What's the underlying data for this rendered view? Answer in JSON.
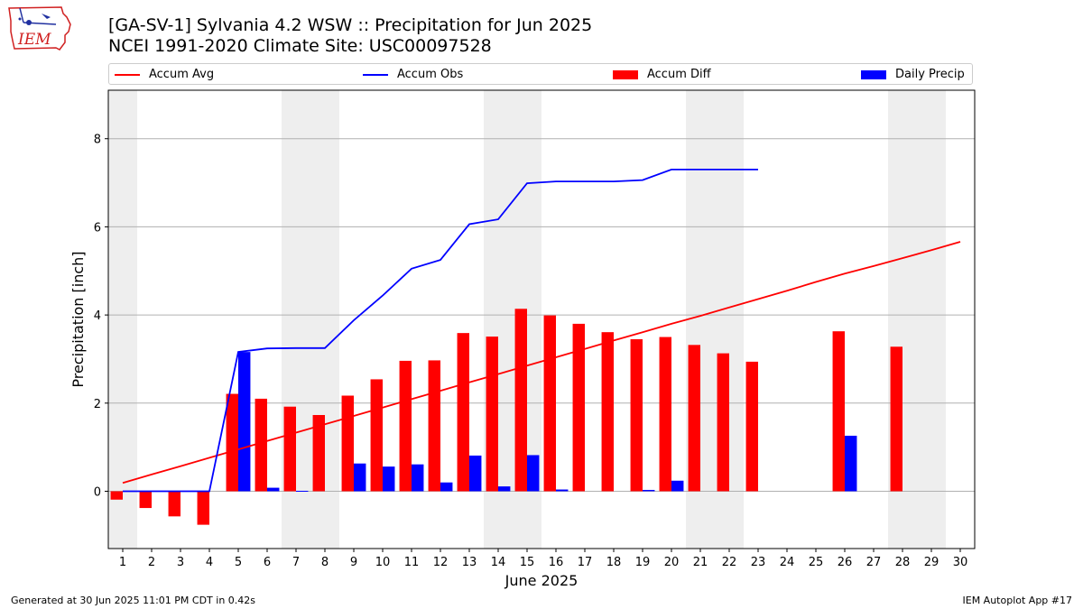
{
  "header": {
    "title_line1": "[GA-SV-1] Sylvania 4.2 WSW :: Precipitation for Jun 2025",
    "title_line2": "NCEI 1991-2020 Climate Site: USC00097528"
  },
  "logo": {
    "text": "IEM",
    "icon": "iowa-state-logo"
  },
  "footer": {
    "left": "Generated at 30 Jun 2025 11:01 PM CDT in 0.42s",
    "right": "IEM Autoplot App #17"
  },
  "colors": {
    "accum_avg": "#ff0000",
    "accum_obs": "#0000ff",
    "accum_diff": "#ff0000",
    "daily_precip": "#0000ff",
    "weekend_band": "#eeeeee",
    "grid": "#b0b0b0"
  },
  "chart_data": {
    "type": "bar",
    "xlabel": "June 2025",
    "ylabel": "Precipitation [inch]",
    "x": [
      1,
      2,
      3,
      4,
      5,
      6,
      7,
      8,
      9,
      10,
      11,
      12,
      13,
      14,
      15,
      16,
      17,
      18,
      19,
      20,
      21,
      22,
      23,
      24,
      25,
      26,
      27,
      28,
      29,
      30
    ],
    "xlim": [
      0.5,
      30.5
    ],
    "ylim": [
      -1.3,
      9.1
    ],
    "yticks": [
      0,
      2,
      4,
      6,
      8
    ],
    "grid": "horizontal",
    "legend": {
      "position": "top",
      "items": [
        "Accum Avg",
        "Accum Obs",
        "Accum Diff",
        "Daily Precip"
      ]
    },
    "weekend_days": [
      1,
      7,
      8,
      14,
      15,
      21,
      22,
      28,
      29
    ],
    "series": [
      {
        "name": "Accum Avg",
        "kind": "line",
        "values": [
          0.19,
          0.38,
          0.57,
          0.76,
          0.95,
          1.14,
          1.33,
          1.52,
          1.71,
          1.9,
          2.09,
          2.28,
          2.47,
          2.66,
          2.85,
          3.04,
          3.23,
          3.42,
          3.61,
          3.8,
          3.98,
          4.17,
          4.36,
          4.55,
          4.75,
          4.94,
          5.11,
          5.29,
          5.47,
          5.66
        ]
      },
      {
        "name": "Accum Obs",
        "kind": "line",
        "values": [
          0.0,
          0.0,
          0.0,
          0.0,
          3.16,
          3.24,
          3.25,
          3.25,
          3.88,
          4.44,
          5.05,
          5.25,
          6.06,
          6.17,
          6.99,
          7.03,
          7.03,
          7.03,
          7.06,
          7.3,
          7.3,
          7.3,
          7.3,
          null,
          null,
          null,
          null,
          null,
          null,
          null
        ]
      },
      {
        "name": "Accum Diff",
        "kind": "bar",
        "values": [
          -0.19,
          -0.38,
          -0.57,
          -0.76,
          2.21,
          2.1,
          1.92,
          1.73,
          2.17,
          2.54,
          2.96,
          2.97,
          3.59,
          3.51,
          4.14,
          3.99,
          3.8,
          3.61,
          3.45,
          3.5,
          3.32,
          3.13,
          2.94,
          null,
          null,
          3.63,
          null,
          3.28,
          null,
          null
        ]
      },
      {
        "name": "Daily Precip",
        "kind": "bar",
        "values": [
          0,
          0,
          0,
          0,
          3.16,
          0.08,
          0.01,
          0,
          0.63,
          0.56,
          0.61,
          0.2,
          0.81,
          0.11,
          0.82,
          0.04,
          0,
          0,
          0.03,
          0.24,
          0,
          0,
          0,
          null,
          null,
          1.26,
          null,
          null,
          null,
          null
        ]
      }
    ]
  }
}
